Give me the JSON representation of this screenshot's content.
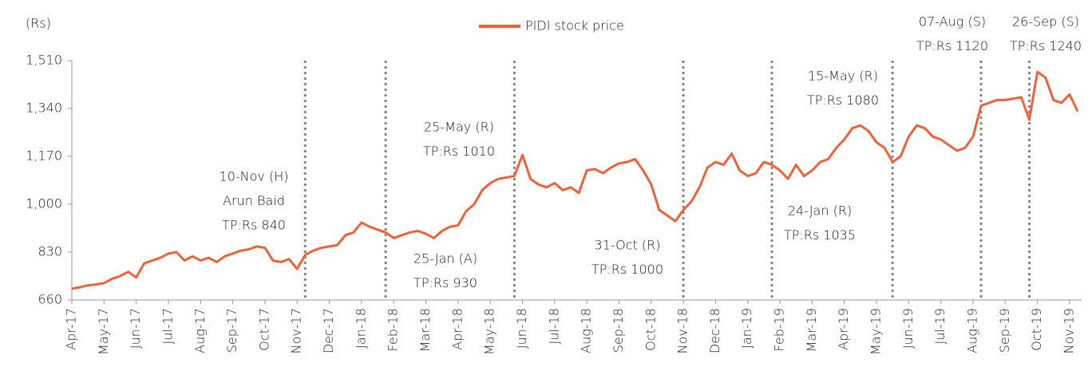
{
  "chart_data": {
    "type": "line",
    "ylabel": "(Rs)",
    "ylim": [
      660,
      1510
    ],
    "yticks": [
      660,
      830,
      {
        "value": 1000,
        "label": "1,000"
      },
      {
        "value": 1170,
        "label": "1,170"
      },
      {
        "value": 1340,
        "label": "1,340"
      },
      {
        "value": 1510,
        "label": "1,510"
      }
    ],
    "categories": [
      "Apr-17",
      null,
      null,
      null,
      "May-17",
      null,
      null,
      null,
      "Jun-17",
      null,
      null,
      null,
      "Jul-17",
      null,
      null,
      null,
      "Aug-17",
      null,
      null,
      null,
      "Sep-17",
      null,
      null,
      null,
      "Oct-17",
      null,
      null,
      null,
      "Nov-17",
      null,
      null,
      null,
      "Dec-17",
      null,
      null,
      null,
      "Jan-18",
      null,
      null,
      null,
      "Feb-18",
      null,
      null,
      null,
      "Mar-18",
      null,
      null,
      null,
      "Apr-18",
      null,
      null,
      null,
      "May-18",
      null,
      null,
      null,
      "Jun-18",
      null,
      null,
      null,
      "Jul-18",
      null,
      null,
      null,
      "Aug-18",
      null,
      null,
      null,
      "Sep-18",
      null,
      null,
      null,
      "Oct-18",
      null,
      null,
      null,
      "Nov-18",
      null,
      null,
      null,
      "Dec-18",
      null,
      null,
      null,
      "Jan-19",
      null,
      null,
      null,
      "Feb-19",
      null,
      null,
      null,
      "Mar-19",
      null,
      null,
      null,
      "Apr-19",
      null,
      null,
      null,
      "May-19",
      null,
      null,
      null,
      "Jun-19",
      null,
      null,
      null,
      "Jul-19",
      null,
      null,
      null,
      "Aug-19",
      null,
      null,
      null,
      "Sep-19",
      null,
      null,
      null,
      "Oct-19",
      null,
      null,
      null,
      "Nov-19",
      null
    ],
    "series": [
      {
        "name": "PIDI stock price",
        "color": "#f4623a",
        "values": [
          700,
          705,
          712,
          715,
          720,
          735,
          745,
          760,
          740,
          790,
          800,
          810,
          825,
          830,
          800,
          815,
          800,
          810,
          795,
          815,
          825,
          835,
          840,
          850,
          845,
          800,
          795,
          805,
          770,
          820,
          835,
          845,
          850,
          855,
          890,
          900,
          935,
          920,
          910,
          900,
          880,
          890,
          900,
          905,
          895,
          880,
          905,
          920,
          925,
          975,
          1000,
          1050,
          1075,
          1090,
          1095,
          1100,
          1175,
          1090,
          1070,
          1060,
          1075,
          1050,
          1060,
          1040,
          1120,
          1125,
          1110,
          1130,
          1145,
          1150,
          1160,
          1120,
          1070,
          980,
          960,
          940,
          980,
          1010,
          1060,
          1130,
          1150,
          1140,
          1180,
          1120,
          1100,
          1110,
          1150,
          1140,
          1120,
          1090,
          1140,
          1100,
          1120,
          1150,
          1160,
          1200,
          1230,
          1270,
          1280,
          1260,
          1220,
          1200,
          1150,
          1170,
          1240,
          1280,
          1270,
          1240,
          1230,
          1210,
          1190,
          1200,
          1240,
          1350,
          1360,
          1370,
          1370,
          1375,
          1380,
          1300,
          1470,
          1450,
          1370,
          1360,
          1390,
          1330
        ]
      }
    ],
    "annotations": [
      {
        "x": 29,
        "lines": [
          "10-Nov (H)",
          "Arun Baid",
          "TP:Rs 840"
        ]
      },
      {
        "x": 39,
        "lines": [
          "25-Jan (A)",
          "TP:Rs 930"
        ]
      },
      {
        "x": 55,
        "lines": [
          "25-May (R)",
          "TP:Rs 1010"
        ]
      },
      {
        "x": 76,
        "lines": [
          "31-Oct (R)",
          "TP:Rs 1000"
        ]
      },
      {
        "x": 87,
        "lines": [
          "24-Jan (R)",
          "TP:Rs 1035"
        ]
      },
      {
        "x": 102,
        "lines": [
          "15-May (R)",
          "TP:Rs 1080"
        ]
      },
      {
        "x": 113,
        "lines": [
          "07-Aug (S)",
          "TP:Rs 1120"
        ]
      },
      {
        "x": 119,
        "lines": [
          "26-Sep (S)",
          "TP:Rs 1240"
        ]
      }
    ],
    "legend": "top"
  }
}
